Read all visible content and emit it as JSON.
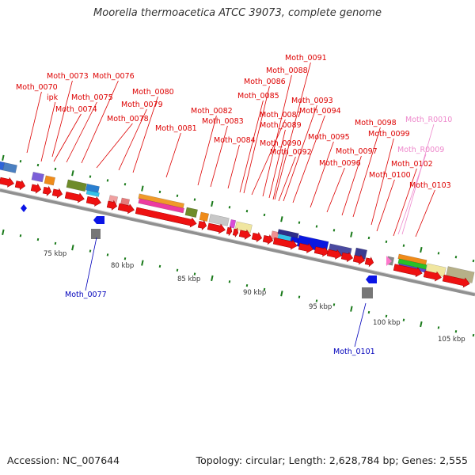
{
  "title": "Moorella thermoacetica ATCC 39073, complete genome",
  "footer": {
    "accession": "Accession: NC_007644",
    "topology": "Topology: circular; Length: 2,628,784 bp; Genes: 2,555"
  },
  "colors": {
    "cds_forward": "#ee1111",
    "cds_reverse": "#0a14e6",
    "label_forward": "#dd0000",
    "label_reverse": "#0000bb",
    "label_rna": "#ee88cc",
    "backbone": "#888888",
    "tick": "#1a7a1a"
  },
  "scale": {
    "ticks": [
      {
        "label": "75 kbp"
      },
      {
        "label": "80 kbp"
      },
      {
        "label": "85 kbp"
      },
      {
        "label": "90 kbp"
      },
      {
        "label": "95 kbp"
      },
      {
        "label": "100 kbp"
      },
      {
        "label": "105 kbp"
      }
    ]
  },
  "genes": {
    "top": [
      {
        "label": "Moth_0070"
      },
      {
        "label": "Moth_0073"
      },
      {
        "label": "ipk"
      },
      {
        "label": "Moth_0074"
      },
      {
        "label": "Moth_0075"
      },
      {
        "label": "Moth_0076"
      },
      {
        "label": "Moth_0078"
      },
      {
        "label": "Moth_0079"
      },
      {
        "label": "Moth_0080"
      },
      {
        "label": "Moth_0081"
      },
      {
        "label": "Moth_0082"
      },
      {
        "label": "Moth_0083"
      },
      {
        "label": "Moth_0084"
      },
      {
        "label": "Moth_0085"
      },
      {
        "label": "Moth_0086"
      },
      {
        "label": "Moth_0087"
      },
      {
        "label": "Moth_0088"
      },
      {
        "label": "Moth_0089"
      },
      {
        "label": "Moth_0090"
      },
      {
        "label": "Moth_0091"
      },
      {
        "label": "Moth_0092"
      },
      {
        "label": "Moth_0093"
      },
      {
        "label": "Moth_0094"
      },
      {
        "label": "Moth_0095"
      },
      {
        "label": "Moth_0096"
      },
      {
        "label": "Moth_0097"
      },
      {
        "label": "Moth_0098"
      },
      {
        "label": "Moth_0099"
      },
      {
        "label": "Moth_0100"
      },
      {
        "label": "Moth_0102"
      },
      {
        "label": "Moth_0103"
      },
      {
        "label": "Moth_R0010"
      },
      {
        "label": "Moth_R0009"
      }
    ],
    "bottom": [
      {
        "label": "Moth_0077"
      },
      {
        "label": "Moth_0101"
      }
    ]
  }
}
